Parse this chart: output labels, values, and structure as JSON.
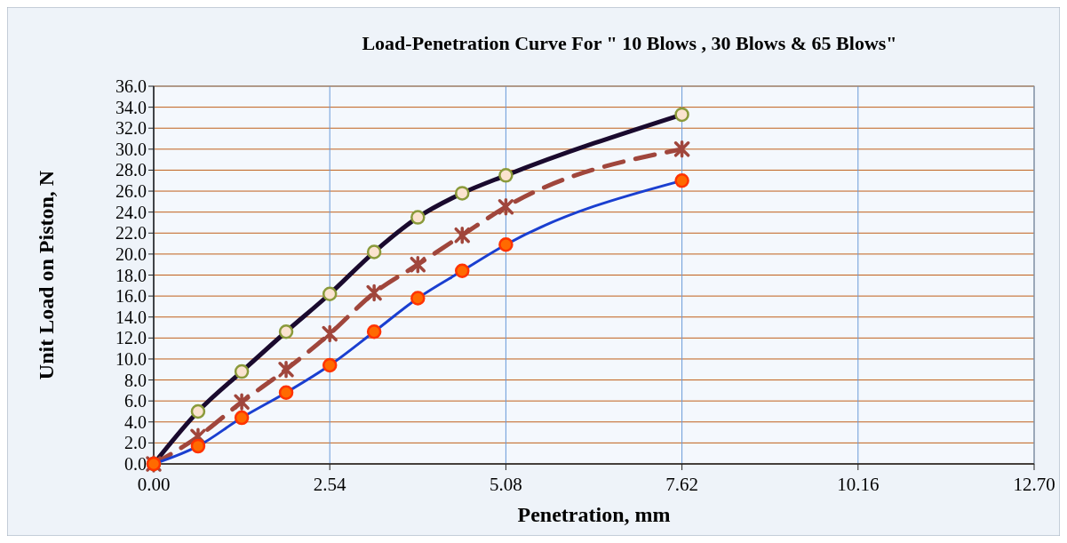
{
  "chart_data": {
    "type": "line",
    "title": "Load-Penetration Curve For \" 10 Blows , 30 Blows & 65 Blows\"",
    "xlabel": "Penetration, mm",
    "ylabel": "Unit Load on Piston, N",
    "x": [
      0,
      0.64,
      1.27,
      1.91,
      2.54,
      3.18,
      3.81,
      4.45,
      5.08,
      7.62
    ],
    "series": [
      {
        "color": "#1a0a2e",
        "marker": "circle",
        "line_style": "solid",
        "values": [
          0,
          5.0,
          8.8,
          12.6,
          16.2,
          20.2,
          23.5,
          25.8,
          27.5,
          33.3
        ]
      },
      {
        "color": "#a0463c",
        "marker": "cross",
        "line_style": "dashed",
        "values": [
          0,
          2.6,
          5.9,
          9.0,
          12.4,
          16.3,
          19.0,
          21.8,
          24.5,
          30.0
        ]
      },
      {
        "color": "#1a3fd0",
        "marker": "circle",
        "line_style": "solid",
        "values": [
          0,
          1.7,
          4.4,
          6.8,
          9.4,
          12.6,
          15.8,
          18.4,
          20.9,
          27.0
        ]
      }
    ],
    "xlim": [
      0,
      12.7
    ],
    "xticks": [
      {
        "value": 0,
        "label": "0.00"
      },
      2.54,
      5.08,
      7.62,
      10.16,
      {
        "value": 12.7,
        "label": "12.70"
      }
    ],
    "ylim": [
      0,
      36
    ],
    "yticks": [
      {
        "value": 0,
        "label": "0.0"
      },
      {
        "value": 2,
        "label": "2.0"
      },
      {
        "value": 4,
        "label": "4.0"
      },
      {
        "value": 6,
        "label": "6.0"
      },
      {
        "value": 8,
        "label": "8.0"
      },
      {
        "value": 10,
        "label": "10.0"
      },
      {
        "value": 12,
        "label": "12.0"
      },
      {
        "value": 14,
        "label": "14.0"
      },
      {
        "value": 16,
        "label": "16.0"
      },
      {
        "value": 18,
        "label": "18.0"
      },
      {
        "value": 20,
        "label": "20.0"
      },
      {
        "value": 22,
        "label": "22.0"
      },
      {
        "value": 24,
        "label": "24.0"
      },
      {
        "value": 26,
        "label": "26.0"
      },
      {
        "value": 28,
        "label": "28.0"
      },
      {
        "value": 30,
        "label": "30.0"
      },
      {
        "value": 32,
        "label": "32.0"
      },
      {
        "value": 34,
        "label": "34.0"
      },
      {
        "value": 36,
        "label": "36.0"
      }
    ],
    "grid": true
  }
}
